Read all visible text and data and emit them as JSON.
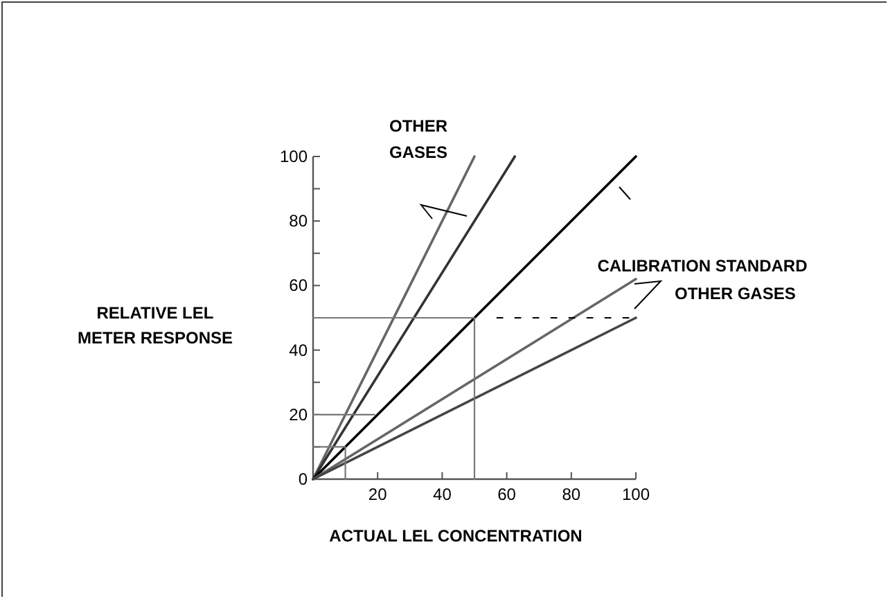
{
  "chart_data": {
    "type": "line",
    "xlabel": "ACTUAL LEL CONCENTRATION",
    "ylabel": "RELATIVE LEL\nMETER RESPONSE",
    "xlim": [
      0,
      100
    ],
    "ylim": [
      0,
      100
    ],
    "xticks": [
      {
        "value": 20,
        "label": "20"
      },
      {
        "value": 40,
        "label": "40"
      },
      {
        "value": 60,
        "label": "60"
      },
      {
        "value": 80,
        "label": "80"
      },
      {
        "value": 100,
        "label": "100"
      }
    ],
    "yticks": [
      0,
      {
        "value": 10,
        "label": null
      },
      20,
      {
        "value": 30,
        "label": null
      },
      40,
      {
        "value": 50,
        "label": null
      },
      60,
      {
        "value": 70,
        "label": null
      },
      80,
      {
        "value": 90,
        "label": null
      },
      100
    ],
    "grid": false,
    "marker": "none",
    "series": [
      {
        "color": "#666666",
        "x": [
          0,
          50
        ],
        "values": [
          0,
          100
        ]
      },
      {
        "color": "#333333",
        "x": [
          0,
          62.5
        ],
        "values": [
          0,
          100
        ]
      },
      {
        "color": "#000000",
        "x": [
          0,
          100
        ],
        "values": [
          0,
          100
        ]
      },
      {
        "color": "#666666",
        "x": [
          0,
          100
        ],
        "values": [
          0,
          62
        ]
      },
      {
        "color": "#444444",
        "x": [
          0,
          100
        ],
        "values": [
          0,
          50
        ]
      },
      {
        "color": "#777777",
        "x": [
          0,
          50,
          50
        ],
        "values": [
          50,
          50,
          0
        ]
      },
      {
        "color": "#000000",
        "x": [
          57,
          100
        ],
        "values": [
          50,
          50
        ],
        "line_style": "dashed"
      },
      {
        "color": "#777777",
        "x": [
          0,
          19
        ],
        "values": [
          20,
          20
        ]
      },
      {
        "color": "#777777",
        "x": [
          0,
          10,
          10
        ],
        "values": [
          10,
          10,
          0
        ]
      }
    ],
    "annotations": [
      "OTHER\nGASES",
      "CALIBRATION STANDARD",
      "OTHER GASES"
    ]
  }
}
